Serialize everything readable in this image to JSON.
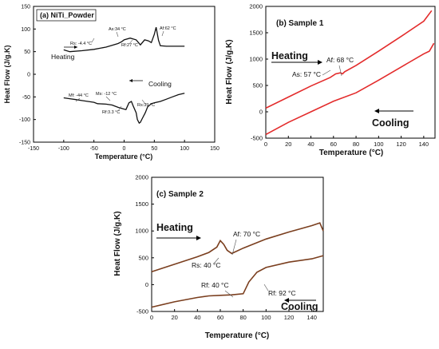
{
  "chart_data": [
    {
      "id": "a",
      "type": "line",
      "panel_label": "(a) NiTi_Powder",
      "xlabel": "Temperature (°C)",
      "ylabel": "Heat Flow (J/g.K)",
      "xlim": [
        -150,
        150
      ],
      "ylim": [
        -150,
        150
      ],
      "xticks": [
        -150,
        -100,
        -50,
        0,
        50,
        100,
        150
      ],
      "yticks": [
        -150,
        -100,
        -50,
        0,
        50,
        100,
        150
      ],
      "line_color": "#111111",
      "series": [
        {
          "direction": "heating",
          "x": [
            -100,
            -90,
            -70,
            -50,
            -30,
            -20,
            -10,
            -4,
            0,
            10,
            20,
            27,
            34,
            40,
            45,
            50,
            53,
            57,
            60,
            70,
            80,
            90,
            100
          ],
          "y": [
            54,
            50,
            52,
            55,
            60,
            64,
            68,
            72,
            76,
            80,
            76,
            65,
            76,
            74,
            70,
            88,
            104,
            75,
            63,
            62,
            62,
            62,
            62
          ]
        },
        {
          "direction": "cooling",
          "x": [
            100,
            90,
            80,
            70,
            60,
            50,
            45,
            39,
            35,
            30,
            27,
            25,
            22,
            20,
            15,
            12,
            8,
            5,
            3,
            0,
            -10,
            -20,
            -30,
            -44,
            -50,
            -60,
            -70,
            -80,
            -90,
            -100
          ],
          "y": [
            -42,
            -45,
            -50,
            -55,
            -60,
            -63,
            -65,
            -72,
            -85,
            -98,
            -106,
            -108,
            -100,
            -85,
            -70,
            -60,
            -63,
            -72,
            -78,
            -77,
            -73,
            -68,
            -66,
            -65,
            -62,
            -60,
            -58,
            -56,
            -54,
            -52
          ]
        }
      ],
      "annotations": [
        "As:34 °C",
        "Af:62 °C",
        "Rs: -4.4 °C",
        "Rf:27 °C",
        "Heating",
        "Cooling",
        "Mf: -44 °C",
        "Ms: -12 °C",
        "Rf:3.3 °C",
        "Rs:39 °C"
      ]
    },
    {
      "id": "b",
      "type": "line",
      "panel_label": "(b) Sample 1",
      "xlabel": "Temperature (°C)",
      "ylabel": "Heat Flow (J/g.K)",
      "xlim": [
        0,
        150
      ],
      "ylim": [
        -500,
        2000
      ],
      "xticks": [
        0,
        20,
        40,
        60,
        80,
        100,
        120,
        140
      ],
      "yticks": [
        -500,
        0,
        500,
        1000,
        1500,
        2000
      ],
      "line_color": "#e32b2b",
      "series": [
        {
          "direction": "heating",
          "x": [
            0,
            20,
            40,
            57,
            62,
            66,
            68,
            70,
            80,
            100,
            120,
            140,
            147
          ],
          "y": [
            70,
            280,
            490,
            650,
            720,
            740,
            720,
            760,
            880,
            1150,
            1430,
            1720,
            1920
          ]
        },
        {
          "direction": "cooling",
          "x": [
            149,
            145,
            140,
            120,
            100,
            80,
            60,
            40,
            20,
            0
          ],
          "y": [
            1300,
            1150,
            1100,
            850,
            600,
            360,
            200,
            0,
            -200,
            -430
          ]
        }
      ],
      "annotations": [
        "Heating",
        "Af: 68 °C",
        "As: 57 °C",
        "Cooling"
      ]
    },
    {
      "id": "c",
      "type": "line",
      "panel_label": "(c) Sample 2",
      "xlabel": "Temperature (°C)",
      "ylabel": "Heat Flow (J/g.K)",
      "xlim": [
        0,
        150
      ],
      "ylim": [
        -500,
        2000
      ],
      "xticks": [
        0,
        20,
        40,
        60,
        80,
        100,
        120,
        140
      ],
      "yticks": [
        -500,
        0,
        500,
        1000,
        1500,
        2000
      ],
      "line_color": "#7a3e1e",
      "series": [
        {
          "direction": "heating",
          "x": [
            0,
            20,
            40,
            50,
            57,
            60,
            63,
            66,
            70,
            80,
            100,
            120,
            140,
            147,
            150
          ],
          "y": [
            240,
            380,
            520,
            600,
            700,
            820,
            750,
            640,
            580,
            680,
            850,
            980,
            1100,
            1150,
            1000
          ]
        },
        {
          "direction": "cooling",
          "x": [
            150,
            140,
            120,
            100,
            92,
            85,
            80,
            70,
            60,
            50,
            40,
            20,
            0
          ],
          "y": [
            540,
            480,
            420,
            320,
            230,
            50,
            -170,
            -190,
            -200,
            -210,
            -240,
            -320,
            -420
          ]
        }
      ],
      "annotations": [
        "Heating",
        "Af: 70 °C",
        "Rs: 40 °C",
        "Rf: 40 °C",
        "Rf: 92 °C",
        "Cooling"
      ]
    }
  ]
}
